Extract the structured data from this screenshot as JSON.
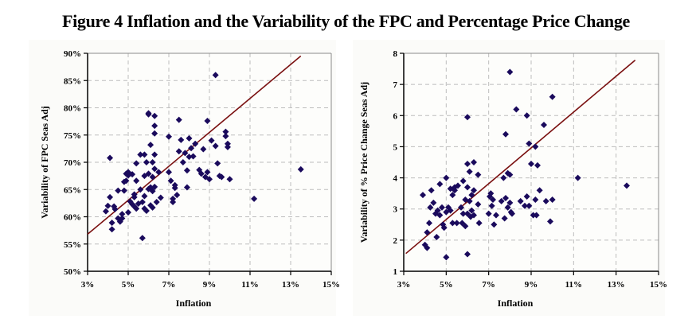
{
  "title": "Figure 4 Inflation and the Variability of the FPC and Percentage Price Change",
  "colors": {
    "marker": "#1a0a5c",
    "trend": "#7a1010",
    "grid": "#bdbdbd",
    "background": "#fbfbf9"
  },
  "chart_data": [
    {
      "type": "scatter",
      "title": "",
      "xlabel": "Inflation",
      "ylabel": "Variability of FPC Seas Adj",
      "xlim": [
        3,
        15
      ],
      "ylim": [
        50,
        90
      ],
      "x_ticks": [
        3,
        5,
        7,
        9,
        11,
        13,
        15
      ],
      "x_tick_labels": [
        "3%",
        "5%",
        "7%",
        "9%",
        "11%",
        "13%",
        "15%"
      ],
      "y_ticks": [
        50,
        55,
        60,
        65,
        70,
        75,
        80,
        85,
        90
      ],
      "y_tick_labels": [
        "50%",
        "55%",
        "60%",
        "65%",
        "70%",
        "75%",
        "80%",
        "85%",
        "90%"
      ],
      "grid": true,
      "trendline": {
        "x": [
          3,
          13.5
        ],
        "y": [
          56.8,
          89.5
        ]
      },
      "points": [
        [
          4.1,
          70.8
        ],
        [
          3.9,
          61
        ],
        [
          4.0,
          62
        ],
        [
          4.1,
          63.6
        ],
        [
          4.2,
          57.7
        ],
        [
          4.2,
          58.9
        ],
        [
          4.3,
          61.9
        ],
        [
          4.35,
          61.4
        ],
        [
          4.5,
          59.7
        ],
        [
          4.6,
          59.1
        ],
        [
          4.5,
          64.8
        ],
        [
          4.7,
          59.7
        ],
        [
          4.7,
          60.5
        ],
        [
          4.8,
          64.8
        ],
        [
          4.8,
          66.4
        ],
        [
          4.9,
          66.6
        ],
        [
          4.9,
          67.9
        ],
        [
          5.0,
          67.6
        ],
        [
          5.0,
          68.2
        ],
        [
          5.0,
          60.8
        ],
        [
          5.1,
          62.8
        ],
        [
          5.2,
          62.3
        ],
        [
          5.2,
          67.8
        ],
        [
          5.3,
          64.1
        ],
        [
          5.3,
          63.6
        ],
        [
          5.3,
          61.9
        ],
        [
          5.4,
          66.6
        ],
        [
          5.4,
          61.5
        ],
        [
          5.4,
          69.8
        ],
        [
          5.5,
          62.4
        ],
        [
          5.6,
          71.4
        ],
        [
          5.6,
          65
        ],
        [
          5.7,
          62.7
        ],
        [
          5.7,
          56.1
        ],
        [
          5.8,
          71.4
        ],
        [
          5.8,
          67.5
        ],
        [
          5.8,
          63.8
        ],
        [
          5.8,
          61.5
        ],
        [
          5.9,
          70
        ],
        [
          5.9,
          61.1
        ],
        [
          6.0,
          79
        ],
        [
          6.0,
          78.8
        ],
        [
          6.0,
          67.9
        ],
        [
          6.0,
          65.1
        ],
        [
          6.1,
          73.2
        ],
        [
          6.1,
          65.4
        ],
        [
          6.1,
          62.1
        ],
        [
          6.2,
          70
        ],
        [
          6.2,
          67.3
        ],
        [
          6.2,
          64.7
        ],
        [
          6.2,
          61.7
        ],
        [
          6.3,
          78.5
        ],
        [
          6.3,
          76.7
        ],
        [
          6.3,
          75.3
        ],
        [
          6.3,
          71.4
        ],
        [
          6.3,
          68.8
        ],
        [
          6.3,
          65.5
        ],
        [
          6.4,
          62.7
        ],
        [
          6.5,
          68.2
        ],
        [
          6.6,
          63.5
        ],
        [
          7.0,
          74.7
        ],
        [
          7.0,
          68.2
        ],
        [
          7.1,
          66.6
        ],
        [
          7.2,
          62.7
        ],
        [
          7.2,
          63.3
        ],
        [
          7.3,
          65.3
        ],
        [
          7.4,
          64
        ],
        [
          7.5,
          77.8
        ],
        [
          7.5,
          72
        ],
        [
          7.6,
          74.1
        ],
        [
          7.7,
          70
        ],
        [
          7.8,
          71.7
        ],
        [
          7.9,
          68.5
        ],
        [
          7.9,
          65.4
        ],
        [
          8.0,
          74.4
        ],
        [
          8.0,
          71
        ],
        [
          8.1,
          72.6
        ],
        [
          8.2,
          71.1
        ],
        [
          8.3,
          73.4
        ],
        [
          8.5,
          68.6
        ],
        [
          8.6,
          67.9
        ],
        [
          8.8,
          67.3
        ],
        [
          8.9,
          77.6
        ],
        [
          8.9,
          68.2
        ],
        [
          9.0,
          66.9
        ],
        [
          9.1,
          74
        ],
        [
          9.3,
          86
        ],
        [
          9.3,
          73
        ],
        [
          9.4,
          69.8
        ],
        [
          9.5,
          67.5
        ],
        [
          9.6,
          67.3
        ],
        [
          9.8,
          75.6
        ],
        [
          9.8,
          74.8
        ],
        [
          9.9,
          73.4
        ],
        [
          9.9,
          72.8
        ],
        [
          10.0,
          66.9
        ],
        [
          11.2,
          63.3
        ],
        [
          13.5,
          68.7
        ],
        [
          8.7,
          72.4
        ],
        [
          7.3,
          65.8
        ]
      ]
    },
    {
      "type": "scatter",
      "title": "",
      "xlabel": "Inflation",
      "ylabel": "Variability of % Price Change Seas Adj",
      "xlim": [
        3,
        15
      ],
      "ylim": [
        1,
        8
      ],
      "x_ticks": [
        3,
        5,
        7,
        9,
        11,
        13,
        15
      ],
      "x_tick_labels": [
        "3%",
        "5%",
        "7%",
        "9%",
        "11%",
        "13%",
        "15%"
      ],
      "y_ticks": [
        1,
        2,
        3,
        4,
        5,
        6,
        7,
        8
      ],
      "y_tick_labels": [
        "1",
        "2",
        "3",
        "4",
        "5",
        "6",
        "7",
        "8"
      ],
      "grid": true,
      "trendline": {
        "x": [
          3.1,
          13.9
        ],
        "y": [
          1.57,
          7.78
        ]
      },
      "points": [
        [
          3.9,
          3.45
        ],
        [
          4.0,
          1.85
        ],
        [
          4.1,
          1.75
        ],
        [
          4.1,
          2.25
        ],
        [
          4.2,
          2.55
        ],
        [
          4.25,
          3.05
        ],
        [
          4.3,
          3.6
        ],
        [
          4.4,
          3.2
        ],
        [
          4.5,
          2.85
        ],
        [
          4.55,
          2.1
        ],
        [
          4.6,
          2.95
        ],
        [
          4.7,
          3.8
        ],
        [
          4.7,
          2.8
        ],
        [
          4.8,
          3.05
        ],
        [
          4.85,
          2.5
        ],
        [
          4.9,
          2.4
        ],
        [
          5.0,
          2.9
        ],
        [
          5.0,
          1.45
        ],
        [
          5.0,
          4.0
        ],
        [
          5.1,
          3.05
        ],
        [
          5.2,
          3.65
        ],
        [
          5.2,
          2.95
        ],
        [
          5.3,
          3.45
        ],
        [
          5.3,
          2.55
        ],
        [
          5.4,
          3.6
        ],
        [
          5.4,
          3.7
        ],
        [
          5.5,
          2.55
        ],
        [
          5.55,
          3.75
        ],
        [
          5.7,
          3.05
        ],
        [
          5.75,
          2.55
        ],
        [
          5.8,
          3.9
        ],
        [
          5.8,
          2.85
        ],
        [
          5.9,
          3.3
        ],
        [
          5.9,
          2.45
        ],
        [
          6.0,
          5.95
        ],
        [
          6.0,
          4.45
        ],
        [
          6.0,
          3.7
        ],
        [
          6.0,
          2.85
        ],
        [
          6.0,
          1.55
        ],
        [
          6.1,
          4.2
        ],
        [
          6.1,
          3.25
        ],
        [
          6.15,
          2.75
        ],
        [
          6.2,
          3.45
        ],
        [
          6.2,
          2.95
        ],
        [
          6.3,
          4.5
        ],
        [
          6.3,
          3.6
        ],
        [
          6.3,
          2.8
        ],
        [
          6.5,
          4.1
        ],
        [
          6.5,
          3.15
        ],
        [
          6.55,
          2.55
        ],
        [
          7.0,
          2.85
        ],
        [
          7.05,
          3.4
        ],
        [
          7.1,
          3.5
        ],
        [
          7.15,
          3.1
        ],
        [
          7.2,
          3.3
        ],
        [
          7.25,
          2.5
        ],
        [
          7.35,
          2.8
        ],
        [
          7.6,
          3.25
        ],
        [
          7.7,
          4.0
        ],
        [
          7.75,
          2.7
        ],
        [
          7.8,
          5.4
        ],
        [
          7.8,
          3.35
        ],
        [
          7.9,
          4.15
        ],
        [
          7.9,
          3.05
        ],
        [
          8.0,
          7.4
        ],
        [
          8.0,
          4.1
        ],
        [
          8.0,
          3.2
        ],
        [
          8.05,
          2.9
        ],
        [
          8.1,
          2.85
        ],
        [
          8.3,
          6.2
        ],
        [
          8.5,
          3.25
        ],
        [
          8.8,
          6.0
        ],
        [
          8.8,
          3.4
        ],
        [
          8.9,
          5.1
        ],
        [
          8.9,
          3.1
        ],
        [
          9.0,
          4.45
        ],
        [
          9.1,
          2.8
        ],
        [
          9.2,
          5.0
        ],
        [
          9.2,
          3.3
        ],
        [
          9.3,
          4.4
        ],
        [
          9.4,
          3.6
        ],
        [
          9.6,
          5.7
        ],
        [
          9.7,
          3.25
        ],
        [
          9.9,
          2.6
        ],
        [
          10.0,
          6.6
        ],
        [
          10.0,
          3.3
        ],
        [
          11.2,
          4.0
        ],
        [
          13.5,
          3.75
        ],
        [
          9.25,
          2.8
        ],
        [
          8.7,
          3.1
        ]
      ]
    }
  ]
}
